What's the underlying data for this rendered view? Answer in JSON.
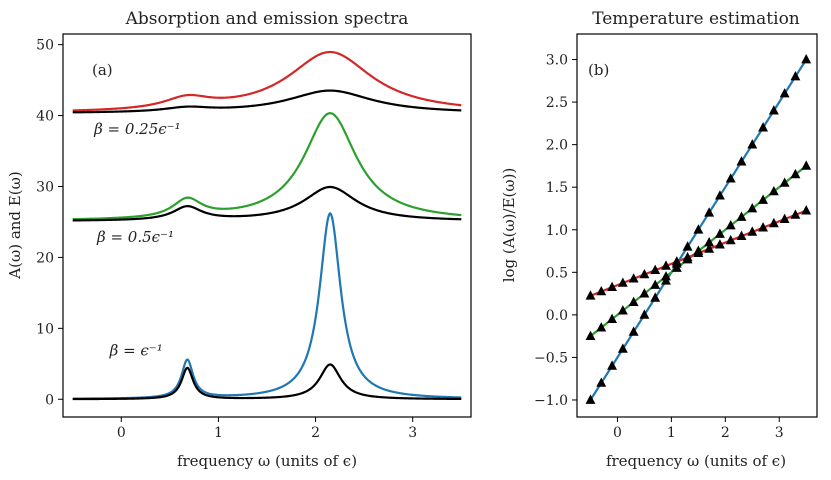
{
  "chart_data": [
    {
      "panel": "a",
      "type": "line",
      "title": "Absorption and emission spectra",
      "panel_label": "(a)",
      "xlabel": "frequency ω (units of ϵ)",
      "ylabel": "A(ω) and E(ω)",
      "xlim": [
        -0.6,
        3.6
      ],
      "ylim": [
        -2.5,
        51.5
      ],
      "xticks": [
        0,
        1,
        2,
        3
      ],
      "yticks": [
        0,
        10,
        20,
        30,
        40,
        50
      ],
      "grid": false,
      "peaks": {
        "centers": [
          0.68,
          2.15
        ],
        "widths": [
          0.12,
          0.22
        ],
        "note": "each curve = offset + sum of Lorentzians with the given peak heights"
      },
      "series": [
        {
          "name": "A(ω), β = 0.25ϵ⁻¹",
          "role": "absorption",
          "color": "#d62728",
          "offset": 40.3,
          "peak_heights": [
            1.6,
            8.6
          ],
          "width_scale": 2.4
        },
        {
          "name": "E(ω), β = 0.25ϵ⁻¹",
          "role": "emission",
          "color": "#000000",
          "offset": 40.3,
          "peak_heights": [
            0.6,
            3.2
          ],
          "width_scale": 2.4
        },
        {
          "name": "A(ω), β = 0.5ϵ⁻¹",
          "role": "absorption",
          "color": "#2ca02c",
          "offset": 25.1,
          "peak_heights": [
            2.6,
            15.2
          ],
          "width_scale": 1.5
        },
        {
          "name": "E(ω), β = 0.5ϵ⁻¹",
          "role": "emission",
          "color": "#000000",
          "offset": 25.1,
          "peak_heights": [
            1.9,
            4.8
          ],
          "width_scale": 1.5
        },
        {
          "name": "A(ω), β = ϵ⁻¹",
          "role": "absorption",
          "color": "#1f77b4",
          "offset": 0.0,
          "peak_heights": [
            5.4,
            26.2
          ],
          "width_scale": 0.6
        },
        {
          "name": "E(ω), β = ϵ⁻¹",
          "role": "emission",
          "color": "#000000",
          "offset": 0.0,
          "peak_heights": [
            4.4,
            4.9
          ],
          "width_scale": 0.6
        }
      ],
      "annotations": [
        {
          "label": "β = 0.25ϵ⁻¹",
          "x": -0.28,
          "y": 37.4
        },
        {
          "label": "β = 0.5ϵ⁻¹",
          "x": -0.25,
          "y": 22.2
        },
        {
          "label": "β = ϵ⁻¹",
          "x": -0.12,
          "y": 6.2
        }
      ]
    },
    {
      "panel": "b",
      "type": "scatter",
      "title": "Temperature estimation",
      "panel_label": "(b)",
      "xlabel": "frequency ω (units of ϵ)",
      "ylabel": "log (A(ω)/E(ω))",
      "xlim": [
        -0.75,
        3.7
      ],
      "ylim": [
        -1.2,
        3.3
      ],
      "xticks": [
        0,
        1,
        2,
        3
      ],
      "yticks": [
        -1.0,
        -0.5,
        0.0,
        0.5,
        1.0,
        1.5,
        2.0,
        2.5,
        3.0
      ],
      "grid": false,
      "x_points": [
        -0.5,
        -0.3,
        -0.1,
        0.1,
        0.3,
        0.5,
        0.7,
        0.9,
        1.1,
        1.3,
        1.5,
        1.7,
        1.9,
        2.1,
        2.3,
        2.5,
        2.7,
        2.9,
        3.1,
        3.3,
        3.5
      ],
      "marker": "black triangle",
      "series": [
        {
          "name": "β = ϵ⁻¹",
          "color": "#1f77b4",
          "slope": 1.0,
          "intercept": -0.5
        },
        {
          "name": "β = 0.5ϵ⁻¹",
          "color": "#2ca02c",
          "slope": 0.5,
          "intercept": 0.0
        },
        {
          "name": "β = 0.25ϵ⁻¹",
          "color": "#d62728",
          "slope": 0.25,
          "intercept": 0.35
        }
      ]
    }
  ]
}
